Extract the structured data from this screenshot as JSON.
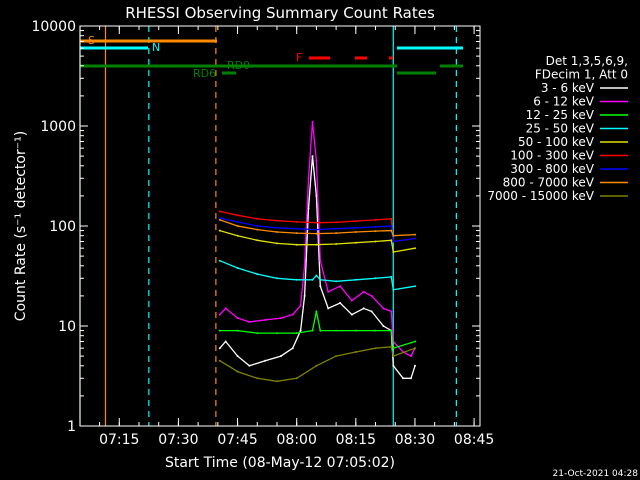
{
  "chart_data": {
    "type": "line",
    "title": "RHESSI Observing Summary Count Rates",
    "xlabel": "Start Time (08-May-12 07:05:02)",
    "ylabel": "Count Rate (s⁻¹ detector⁻¹)",
    "yscale": "log",
    "ylim": [
      1,
      10000
    ],
    "xlim": [
      "07:05:02",
      "08:46:30"
    ],
    "x_ticks": [
      "07:15",
      "07:30",
      "07:45",
      "08:00",
      "08:15",
      "08:30",
      "08:45"
    ],
    "y_ticks": [
      "1",
      "10",
      "100",
      "1000",
      "10000"
    ],
    "legend_position": "right",
    "legend_header": [
      "Det 1,3,5,6,9,",
      "FDecim 1, Att 0"
    ],
    "timestamp": "21-Oct-2021 04:28",
    "flag_labels": {
      "S": "S",
      "N": "N",
      "F": "F",
      "RD0": "RD0",
      "RD6": "RD6"
    },
    "series": [
      {
        "name": "3 - 6 keV",
        "color": "#ffffff",
        "x": [
          "07:40:30",
          "07:42",
          "07:45",
          "07:48",
          "07:52",
          "07:56",
          "07:59",
          "08:01",
          "08:02",
          "08:03",
          "08:04",
          "08:05",
          "08:06",
          "08:08",
          "08:11",
          "08:14",
          "08:17",
          "08:19",
          "08:22",
          "08:24",
          "08:24:30",
          "08:27",
          "08:29",
          "08:30"
        ],
        "values": [
          6,
          7,
          5,
          4,
          4.5,
          5,
          6,
          9,
          20,
          150,
          500,
          200,
          25,
          15,
          17,
          13,
          15,
          14,
          10,
          9,
          4,
          3,
          3,
          4
        ]
      },
      {
        "name": "6 - 12 keV",
        "color": "#ff00ff",
        "x": [
          "07:40:30",
          "07:42",
          "07:45",
          "07:48",
          "07:52",
          "07:56",
          "07:59",
          "08:01",
          "08:02",
          "08:03",
          "08:04",
          "08:05",
          "08:06",
          "08:08",
          "08:11",
          "08:14",
          "08:17",
          "08:19",
          "08:22",
          "08:24",
          "08:24:30",
          "08:27",
          "08:29",
          "08:30"
        ],
        "values": [
          13,
          15,
          12,
          11,
          11.5,
          12,
          13,
          16,
          40,
          300,
          1100,
          450,
          45,
          22,
          25,
          18,
          22,
          20,
          15,
          14,
          7,
          5.5,
          5,
          6
        ]
      },
      {
        "name": "12 - 25 keV",
        "color": "#00ff00",
        "x": [
          "07:40:30",
          "07:45",
          "07:50",
          "07:55",
          "08:00",
          "08:04",
          "08:05",
          "08:06",
          "08:10",
          "08:15",
          "08:20",
          "08:24",
          "08:24:30",
          "08:30"
        ],
        "values": [
          9,
          9,
          8.5,
          8.5,
          8.5,
          9,
          14,
          9,
          9,
          9,
          9,
          9,
          6,
          7
        ]
      },
      {
        "name": "25 - 50 keV",
        "color": "#00ffff",
        "x": [
          "07:40:30",
          "07:45",
          "07:50",
          "07:55",
          "08:00",
          "08:04",
          "08:05",
          "08:06",
          "08:10",
          "08:15",
          "08:20",
          "08:24",
          "08:24:30",
          "08:30"
        ],
        "values": [
          45,
          38,
          33,
          30,
          29,
          29,
          32,
          29,
          28,
          29,
          30,
          31,
          23,
          25
        ]
      },
      {
        "name": "50 - 100 keV",
        "color": "#e0e000",
        "x": [
          "07:40:30",
          "07:45",
          "07:50",
          "07:55",
          "08:00",
          "08:05",
          "08:10",
          "08:15",
          "08:20",
          "08:24",
          "08:24:30",
          "08:30"
        ],
        "values": [
          90,
          80,
          72,
          67,
          65,
          65,
          66,
          68,
          70,
          72,
          55,
          60
        ]
      },
      {
        "name": "100 - 300 keV",
        "color": "#ff0000",
        "x": [
          "07:40:30",
          "07:45",
          "07:50",
          "07:55",
          "08:00",
          "08:05",
          "08:10",
          "08:15",
          "08:20",
          "08:24",
          "08:24:30",
          "08:30"
        ],
        "values": [
          140,
          128,
          118,
          113,
          110,
          108,
          109,
          112,
          115,
          118,
          70,
          75
        ]
      },
      {
        "name": "300 - 800 keV",
        "color": "#0000ff",
        "x": [
          "07:40:30",
          "07:45",
          "07:50",
          "07:55",
          "08:00",
          "08:05",
          "08:10",
          "08:15",
          "08:20",
          "08:24",
          "08:24:30",
          "08:30"
        ],
        "values": [
          120,
          110,
          100,
          96,
          94,
          92,
          94,
          96,
          98,
          100,
          70,
          75
        ]
      },
      {
        "name": "800 - 7000 keV",
        "color": "#ff8c00",
        "x": [
          "07:40:30",
          "07:45",
          "07:50",
          "07:55",
          "08:00",
          "08:05",
          "08:10",
          "08:15",
          "08:20",
          "08:24",
          "08:24:30",
          "08:30"
        ],
        "values": [
          115,
          100,
          92,
          87,
          85,
          84,
          85,
          87,
          89,
          90,
          80,
          82
        ]
      },
      {
        "name": "7000 - 15000 keV",
        "color": "#808000",
        "x": [
          "07:40:30",
          "07:45",
          "07:50",
          "07:55",
          "08:00",
          "08:05",
          "08:10",
          "08:15",
          "08:20",
          "08:24",
          "08:24:30",
          "08:30"
        ],
        "values": [
          4.5,
          3.5,
          3,
          2.8,
          3,
          4,
          5,
          5.5,
          6,
          6.2,
          5,
          6
        ]
      }
    ],
    "attenuator_state_lines": {
      "color": "#00ffff",
      "solid": [
        "07:05:02",
        "08:24:30"
      ],
      "dashed": [
        "07:22:30",
        "08:40:30"
      ]
    },
    "saa_lines": {
      "color": "#ff8c00",
      "solid": [
        "07:11:30"
      ],
      "dashed": [
        "07:39:30"
      ]
    }
  }
}
